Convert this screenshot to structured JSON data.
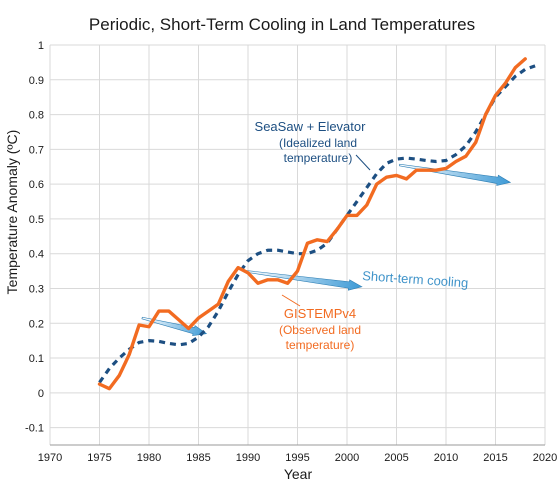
{
  "chart_data": {
    "type": "line",
    "title": "Periodic, Short-Term Cooling in Land Temperatures",
    "xlabel": "Year",
    "ylabel": "Temperature Anomaly (ºC)",
    "xlim": [
      1970,
      2020
    ],
    "ylim": [
      -0.15,
      1.0
    ],
    "xticks": [
      "1970",
      "1975",
      "1980",
      "1985",
      "1990",
      "1995",
      "2000",
      "2005",
      "2010",
      "2015",
      "2020"
    ],
    "yticks": [
      "1",
      "0.9",
      "0.8",
      "0.7",
      "0.6",
      "0.5",
      "0.4",
      "0.3",
      "0.2",
      "0.1",
      "0",
      "-0.1"
    ],
    "grid": true,
    "colors": {
      "observed": "#f26b21",
      "model": "#1d4f82",
      "cooling": "#5aa8d6"
    },
    "series": [
      {
        "key": "model",
        "style": "dashed",
        "x": [
          1975,
          1976,
          1977,
          1978,
          1979,
          1980,
          1981,
          1982,
          1983,
          1984,
          1985,
          1986,
          1987,
          1988,
          1989,
          1990,
          1991,
          1992,
          1993,
          1994,
          1995,
          1996,
          1997,
          1998,
          1999,
          2000,
          2001,
          2002,
          2003,
          2004,
          2005,
          2006,
          2007,
          2008,
          2009,
          2010,
          2011,
          2012,
          2013,
          2014,
          2015,
          2016,
          2017,
          2018,
          2019
        ],
        "y": [
          0.03,
          0.07,
          0.1,
          0.125,
          0.145,
          0.15,
          0.148,
          0.142,
          0.138,
          0.142,
          0.16,
          0.19,
          0.235,
          0.29,
          0.34,
          0.38,
          0.4,
          0.41,
          0.41,
          0.405,
          0.4,
          0.4,
          0.41,
          0.43,
          0.47,
          0.51,
          0.55,
          0.59,
          0.63,
          0.66,
          0.672,
          0.675,
          0.672,
          0.668,
          0.665,
          0.668,
          0.685,
          0.71,
          0.75,
          0.8,
          0.85,
          0.88,
          0.91,
          0.93,
          0.94
        ]
      },
      {
        "key": "observed",
        "style": "solid",
        "x": [
          1975,
          1976,
          1977,
          1978,
          1979,
          1980,
          1981,
          1982,
          1983,
          1984,
          1985,
          1986,
          1987,
          1988,
          1989,
          1990,
          1991,
          1992,
          1993,
          1994,
          1995,
          1996,
          1997,
          1998,
          1999,
          2000,
          2001,
          2002,
          2003,
          2004,
          2005,
          2006,
          2007,
          2008,
          2009,
          2010,
          2011,
          2012,
          2013,
          2014,
          2015,
          2016,
          2017,
          2018
        ],
        "y": [
          0.025,
          0.012,
          0.05,
          0.11,
          0.195,
          0.19,
          0.235,
          0.235,
          0.21,
          0.185,
          0.215,
          0.235,
          0.255,
          0.32,
          0.36,
          0.345,
          0.315,
          0.325,
          0.325,
          0.315,
          0.35,
          0.43,
          0.44,
          0.435,
          0.47,
          0.51,
          0.51,
          0.54,
          0.6,
          0.62,
          0.625,
          0.615,
          0.64,
          0.64,
          0.64,
          0.645,
          0.665,
          0.68,
          0.72,
          0.8,
          0.855,
          0.89,
          0.935,
          0.96
        ]
      }
    ],
    "cooling_trends": [
      {
        "start": [
          1979.3,
          0.215
        ],
        "end": [
          1985.8,
          0.17
        ]
      },
      {
        "start": [
          1989.6,
          0.35
        ],
        "end": [
          2001.5,
          0.305
        ]
      },
      {
        "start": [
          2005.3,
          0.655
        ],
        "end": [
          2016.5,
          0.605
        ]
      }
    ],
    "annotations": {
      "model_name": "SeaSaw + Elevator",
      "model_desc_1": "(Idealized land",
      "model_desc_2": "temperature)",
      "cooling_label": "Short-term cooling",
      "observed_name": "GISTEMPv4",
      "observed_desc_1": "(Observed land",
      "observed_desc_2": "temperature)"
    }
  }
}
